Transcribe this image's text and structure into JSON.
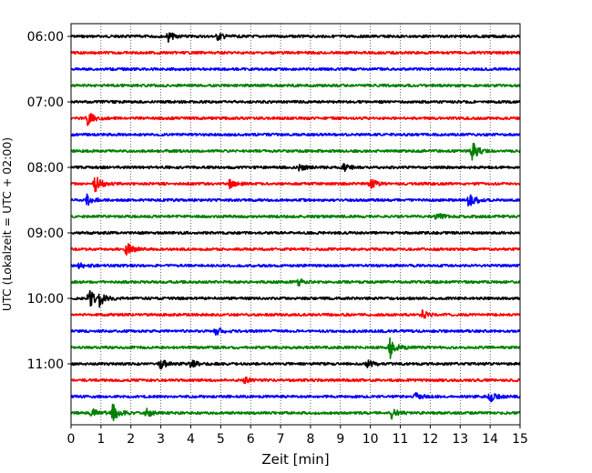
{
  "chart_data": {
    "type": "line",
    "title": "",
    "xlabel": "Zeit  [min]",
    "ylabel": "UTC (Lokalzeit = UTC + 02:00)",
    "xlim": [
      0,
      15
    ],
    "x_ticks": [
      "0",
      "1",
      "2",
      "3",
      "4",
      "5",
      "6",
      "7",
      "8",
      "9",
      "10",
      "11",
      "12",
      "13",
      "14",
      "15"
    ],
    "y_tick_labels": [
      "06:00",
      "07:00",
      "08:00",
      "09:00",
      "10:00",
      "11:00"
    ],
    "trace_interval_min": 15,
    "grid": "vertical dotted at each minute",
    "legend": "none",
    "colors": [
      "#000000",
      "#ff0000",
      "#0000ff",
      "#008000"
    ],
    "traces": [
      {
        "start": "06:00",
        "color": "#000000",
        "events": [
          {
            "t": 3.25,
            "amp": 5
          },
          {
            "t": 4.9,
            "amp": 4
          }
        ]
      },
      {
        "start": "06:15",
        "color": "#ff0000",
        "events": []
      },
      {
        "start": "06:30",
        "color": "#0000ff",
        "events": []
      },
      {
        "start": "06:45",
        "color": "#008000",
        "events": []
      },
      {
        "start": "07:00",
        "color": "#000000",
        "events": []
      },
      {
        "start": "07:15",
        "color": "#ff0000",
        "events": [
          {
            "t": 0.55,
            "amp": 8
          }
        ]
      },
      {
        "start": "07:30",
        "color": "#0000ff",
        "events": []
      },
      {
        "start": "07:45",
        "color": "#008000",
        "events": [
          {
            "t": 13.4,
            "amp": 10
          }
        ]
      },
      {
        "start": "08:00",
        "color": "#000000",
        "events": [
          {
            "t": 7.6,
            "amp": 4
          },
          {
            "t": 9.1,
            "amp": 4
          }
        ]
      },
      {
        "start": "08:15",
        "color": "#ff0000",
        "events": [
          {
            "t": 0.8,
            "amp": 9
          },
          {
            "t": 5.3,
            "amp": 4
          },
          {
            "t": 10.0,
            "amp": 5
          }
        ]
      },
      {
        "start": "08:30",
        "color": "#0000ff",
        "events": [
          {
            "t": 0.55,
            "amp": 7
          },
          {
            "t": 13.3,
            "amp": 9
          }
        ]
      },
      {
        "start": "08:45",
        "color": "#008000",
        "events": [
          {
            "t": 12.2,
            "amp": 4
          }
        ]
      },
      {
        "start": "09:00",
        "color": "#000000",
        "events": []
      },
      {
        "start": "09:15",
        "color": "#ff0000",
        "events": [
          {
            "t": 1.85,
            "amp": 7
          }
        ]
      },
      {
        "start": "09:30",
        "color": "#0000ff",
        "events": [
          {
            "t": 0.3,
            "amp": 4
          }
        ]
      },
      {
        "start": "09:45",
        "color": "#008000",
        "events": [
          {
            "t": 7.6,
            "amp": 4
          }
        ]
      },
      {
        "start": "10:00",
        "color": "#000000",
        "events": [
          {
            "t": 0.6,
            "amp": 11
          },
          {
            "t": 0.95,
            "amp": 8
          }
        ]
      },
      {
        "start": "10:15",
        "color": "#ff0000",
        "events": [
          {
            "t": 11.7,
            "amp": 5
          }
        ]
      },
      {
        "start": "10:30",
        "color": "#0000ff",
        "events": [
          {
            "t": 4.85,
            "amp": 4
          }
        ]
      },
      {
        "start": "10:45",
        "color": "#008000",
        "events": [
          {
            "t": 10.65,
            "amp": 12
          }
        ]
      },
      {
        "start": "11:00",
        "color": "#000000",
        "events": [
          {
            "t": 3.0,
            "amp": 5
          },
          {
            "t": 4.0,
            "amp": 4
          },
          {
            "t": 9.9,
            "amp": 5
          }
        ]
      },
      {
        "start": "11:15",
        "color": "#ff0000",
        "events": [
          {
            "t": 5.8,
            "amp": 3
          }
        ]
      },
      {
        "start": "11:30",
        "color": "#0000ff",
        "events": [
          {
            "t": 11.5,
            "amp": 5
          },
          {
            "t": 14.0,
            "amp": 5
          }
        ]
      },
      {
        "start": "11:45",
        "color": "#008000",
        "events": [
          {
            "t": 0.7,
            "amp": 6
          },
          {
            "t": 1.4,
            "amp": 10
          },
          {
            "t": 2.5,
            "amp": 5
          },
          {
            "t": 10.7,
            "amp": 6
          }
        ]
      }
    ]
  }
}
